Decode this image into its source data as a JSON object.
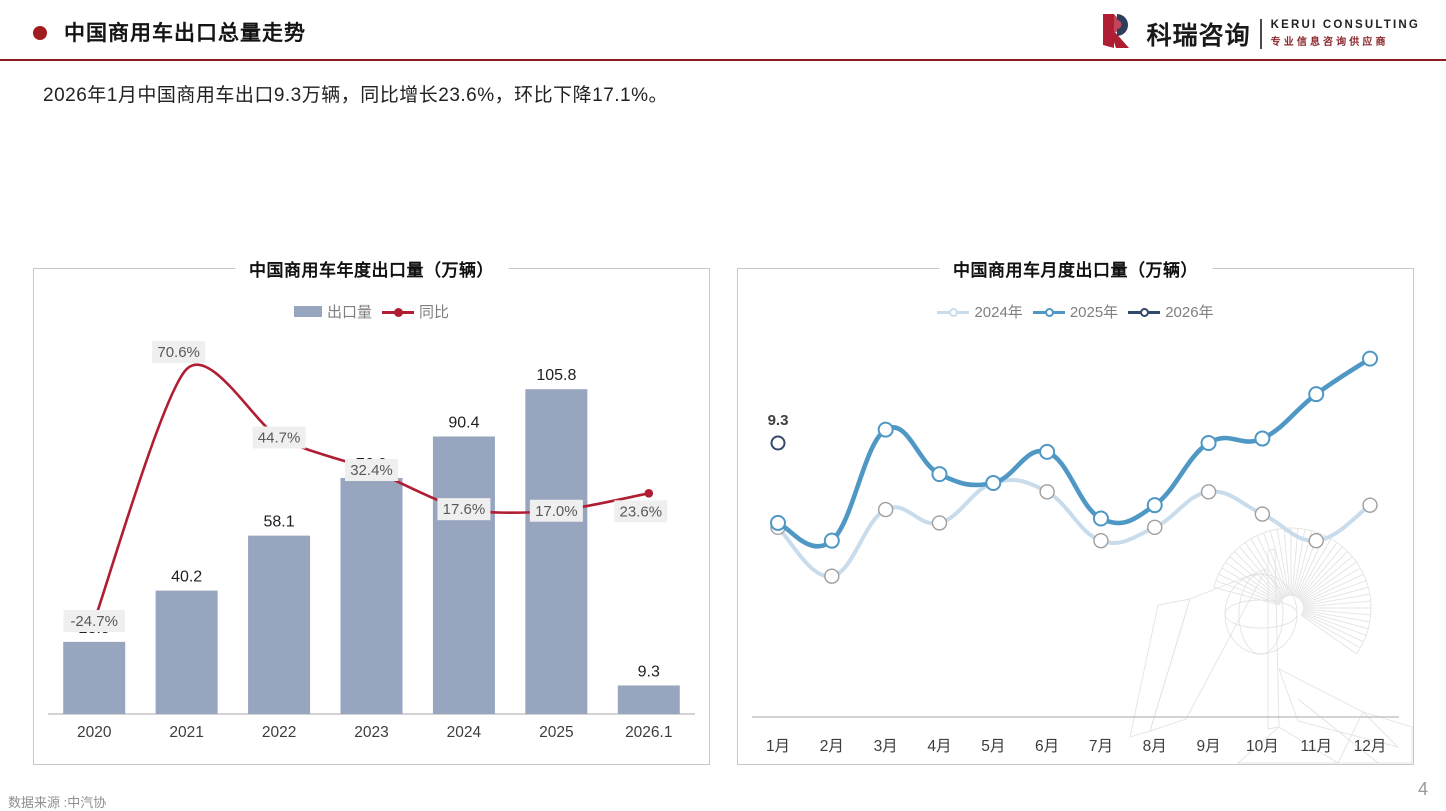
{
  "header": {
    "title": "中国商用车出口总量走势"
  },
  "logo": {
    "cn": "科瑞咨询",
    "en": "KERUI  CONSULTING",
    "tagline": "专业信息咨询供应商",
    "mark": "kerui-r-mark",
    "accent_red": "#b01e33",
    "tagline_color": "#8b2a2e"
  },
  "summary": "2026年1月中国商用车出口9.3万辆，同比增长23.6%，环比下降17.1%。",
  "footer": {
    "source": "数据来源 :中汽协",
    "page": "4"
  },
  "colors": {
    "header_dot": "#a11d1f",
    "header_rule": "#8a1c22",
    "bar": "#97a5bf",
    "yoy_line": "#b01e33",
    "pct_label_bg": "#efefef",
    "pct_label_text": "#595959",
    "axis": "#b9b9b9",
    "tick_text": "#3d3d3d",
    "value_text": "#1f1f1f",
    "legend_text": "#7f7f7f",
    "line_2024": "#c9dcec",
    "marker_2024_stroke": "#9e9e9e",
    "line_2025": "#4f97c5",
    "line_2026": "#32496b",
    "watermark": "#e3e3e3"
  },
  "chart_data": [
    {
      "type": "bar",
      "title": "中国商用车年度出口量（万辆）",
      "categories": [
        "2020",
        "2021",
        "2022",
        "2023",
        "2024",
        "2025",
        "2026.1"
      ],
      "series": [
        {
          "name": "出口量",
          "type": "bar",
          "values": [
            23.5,
            40.2,
            58.1,
            76.9,
            90.4,
            105.8,
            9.3
          ]
        },
        {
          "name": "同比",
          "type": "line",
          "axis": "secondary",
          "values_pct": [
            -24.7,
            70.6,
            44.7,
            32.4,
            17.6,
            17.0,
            23.6
          ],
          "labels": [
            "-24.7%",
            "70.6%",
            "44.7%",
            "32.4%",
            "17.6%",
            "17.0%",
            "23.6%"
          ]
        }
      ],
      "ylabel": "",
      "xlabel": "",
      "ylim": [
        0,
        125
      ],
      "y2lim": [
        -60,
        86
      ],
      "grid": false,
      "legend_position": "top"
    },
    {
      "type": "line",
      "title": "中国商用车月度出口量（万辆）",
      "categories": [
        "1月",
        "2月",
        "3月",
        "4月",
        "5月",
        "6月",
        "7月",
        "8月",
        "9月",
        "10月",
        "11月",
        "12月"
      ],
      "series": [
        {
          "name": "2024年",
          "values": [
            7.4,
            6.3,
            7.8,
            7.5,
            8.4,
            8.2,
            7.1,
            7.4,
            8.2,
            7.7,
            7.1,
            7.9
          ]
        },
        {
          "name": "2025年",
          "values": [
            7.5,
            7.1,
            9.6,
            8.6,
            8.4,
            9.1,
            7.6,
            7.9,
            9.3,
            9.4,
            10.4,
            11.2
          ]
        },
        {
          "name": "2026年",
          "values": [
            9.3
          ],
          "point_label": "9.3"
        }
      ],
      "ylabel": "",
      "xlabel": "",
      "ylim": [
        3,
        13
      ],
      "grid": false,
      "legend_position": "top"
    }
  ]
}
